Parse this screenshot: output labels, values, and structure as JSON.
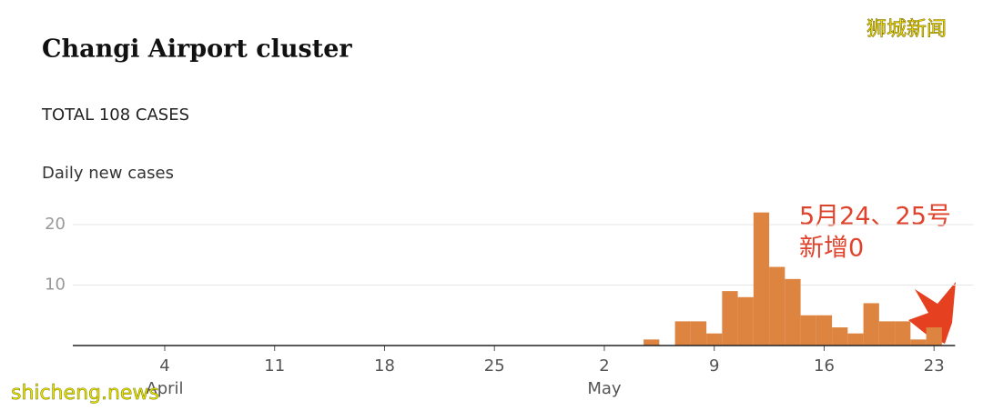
{
  "chart_data": {
    "type": "bar",
    "title": "Changi Airport cluster",
    "subtitle": "TOTAL 108 CASES",
    "y_label": "Daily new cases",
    "annotation": [
      "5月24、25号",
      "新增0"
    ],
    "watermarks": [
      "狮城新闻",
      "shicheng.news"
    ],
    "categories": [
      null,
      null,
      null,
      null,
      null,
      "4",
      null,
      null,
      null,
      null,
      null,
      null,
      "11",
      null,
      null,
      null,
      null,
      null,
      null,
      "18",
      null,
      null,
      null,
      null,
      null,
      null,
      "25",
      null,
      null,
      null,
      null,
      null,
      null,
      "2",
      null,
      null,
      null,
      null,
      null,
      null,
      "9",
      null,
      null,
      null,
      null,
      null,
      null,
      "16",
      null,
      null,
      null,
      null,
      null,
      null,
      "23",
      null,
      null
    ],
    "x_group_labels": [
      null,
      null,
      null,
      null,
      null,
      "April",
      null,
      null,
      null,
      null,
      null,
      null,
      null,
      null,
      null,
      null,
      null,
      null,
      null,
      null,
      null,
      null,
      null,
      null,
      null,
      null,
      null,
      null,
      null,
      null,
      null,
      null,
      null,
      "May",
      null,
      null,
      null,
      null,
      null,
      null,
      null,
      null,
      null,
      null,
      null,
      null,
      null,
      null,
      null,
      null,
      null,
      null,
      null,
      null,
      null,
      null,
      null
    ],
    "values": [
      0,
      0,
      0,
      0,
      0,
      0,
      0,
      0,
      0,
      0,
      0,
      0,
      0,
      0,
      0,
      0,
      0,
      0,
      0,
      0,
      0,
      0,
      0,
      0,
      0,
      0,
      0,
      0,
      0,
      0,
      0,
      0,
      0,
      0,
      0,
      0,
      1,
      0,
      4,
      4,
      2,
      9,
      8,
      22,
      13,
      11,
      5,
      5,
      3,
      2,
      7,
      4,
      4,
      1,
      3,
      0,
      0
    ],
    "color": "#dc8440",
    "ylim": [
      0,
      23
    ],
    "yticks": [
      10,
      20
    ],
    "grid": true
  }
}
